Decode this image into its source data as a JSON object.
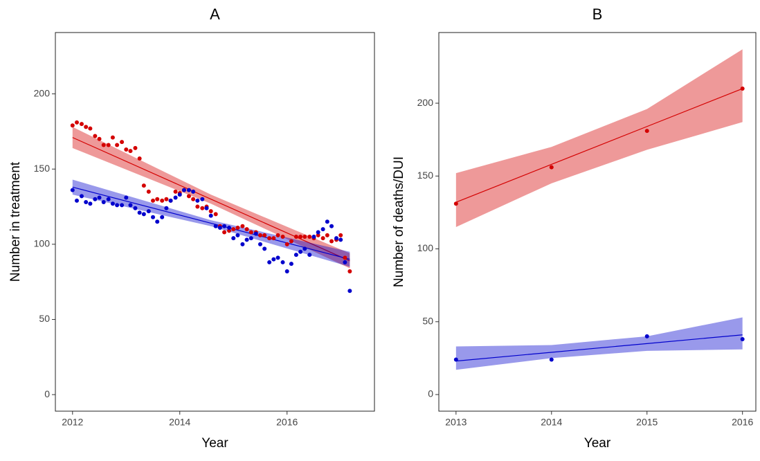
{
  "chart_data": [
    {
      "type": "scatter",
      "title": "A",
      "x_label": "Year",
      "y_label": "Number in treatment",
      "xlim": [
        2011.68,
        2017.63
      ],
      "ylim": [
        -11,
        240.8
      ],
      "xticks": [
        2012,
        2014,
        2016
      ],
      "yticks": [
        0,
        50,
        100,
        150,
        200
      ],
      "x": [
        2012,
        2012.08,
        2012.17,
        2012.25,
        2012.33,
        2012.42,
        2012.5,
        2012.58,
        2012.67,
        2012.75,
        2012.83,
        2012.92,
        2013,
        2013.08,
        2013.17,
        2013.25,
        2013.33,
        2013.42,
        2013.5,
        2013.58,
        2013.67,
        2013.75,
        2013.83,
        2013.92,
        2014,
        2014.08,
        2014.17,
        2014.25,
        2014.33,
        2014.42,
        2014.5,
        2014.58,
        2014.67,
        2014.75,
        2014.83,
        2014.92,
        2015,
        2015.08,
        2015.17,
        2015.25,
        2015.33,
        2015.42,
        2015.5,
        2015.58,
        2015.67,
        2015.75,
        2015.83,
        2015.92,
        2016,
        2016.08,
        2016.17,
        2016.25,
        2016.33,
        2016.42,
        2016.5,
        2016.58,
        2016.67,
        2016.75,
        2016.83,
        2016.92,
        2017,
        2017.08,
        2017.17
      ],
      "series": [
        {
          "color": "#d40000",
          "values": [
            179,
            181,
            180,
            178,
            177,
            172,
            170,
            166,
            166,
            171,
            166,
            168,
            163,
            162,
            164,
            157,
            139,
            135,
            129,
            130,
            129,
            130,
            129,
            135,
            134,
            136,
            132,
            130,
            125,
            124,
            125,
            122,
            120,
            112,
            108,
            109,
            110,
            111,
            112,
            110,
            108,
            108,
            106,
            106,
            104,
            104,
            106,
            105,
            100,
            102,
            105,
            105,
            105,
            105,
            104,
            106,
            104,
            106,
            102,
            103,
            106,
            91,
            82
          ],
          "fit": {
            "x": [
              2012,
              2014.58,
              2017.17
            ],
            "values": [
              171,
              130,
              89
            ],
            "lower": [
              164,
              127,
              84
            ],
            "upper": [
              178,
              133,
              94
            ]
          }
        },
        {
          "color": "#0000cc",
          "values": [
            136,
            129,
            132,
            128,
            127,
            130,
            131,
            128,
            130,
            127,
            126,
            126,
            131,
            126,
            124,
            121,
            120,
            122,
            118,
            115,
            118,
            124,
            129,
            131,
            133,
            136,
            136,
            135,
            129,
            130,
            124,
            119,
            112,
            111,
            112,
            111,
            104,
            106,
            100,
            103,
            104,
            107,
            100,
            97,
            88,
            90,
            91,
            88,
            82,
            87,
            93,
            95,
            97,
            93,
            105,
            108,
            110,
            115,
            112,
            104,
            103,
            88,
            69
          ],
          "fit": {
            "x": [
              2012,
              2014.58,
              2017.17
            ],
            "values": [
              138,
              114,
              90
            ],
            "lower": [
              133,
              112,
              85
            ],
            "upper": [
              143,
              116,
              95
            ]
          }
        }
      ]
    },
    {
      "type": "scatter",
      "title": "B",
      "x_label": "Year",
      "y_label": "Number of deaths/DUI",
      "xlim": [
        2012.82,
        2016.14
      ],
      "ylim": [
        -11.4,
        248.5
      ],
      "xticks": [
        2013,
        2014,
        2015,
        2016
      ],
      "yticks": [
        0,
        50,
        100,
        150,
        200
      ],
      "x": [
        2013,
        2014,
        2015,
        2016
      ],
      "series": [
        {
          "color": "#d40000",
          "values": [
            131,
            156,
            181,
            210
          ],
          "fit": {
            "x": [
              2013,
              2014,
              2015,
              2016
            ],
            "values": [
              132,
              158,
              184,
              210
            ],
            "lower": [
              115,
              145,
              168,
              187
            ],
            "upper": [
              152,
              170,
              196,
              237
            ]
          }
        },
        {
          "color": "#0000cc",
          "values": [
            24,
            24,
            40,
            38
          ],
          "fit": {
            "x": [
              2013,
              2014,
              2015,
              2016
            ],
            "values": [
              23,
              29,
              35,
              41
            ],
            "lower": [
              17,
              25,
              30,
              31
            ],
            "upper": [
              33,
              34,
              40,
              53
            ]
          }
        }
      ]
    }
  ]
}
